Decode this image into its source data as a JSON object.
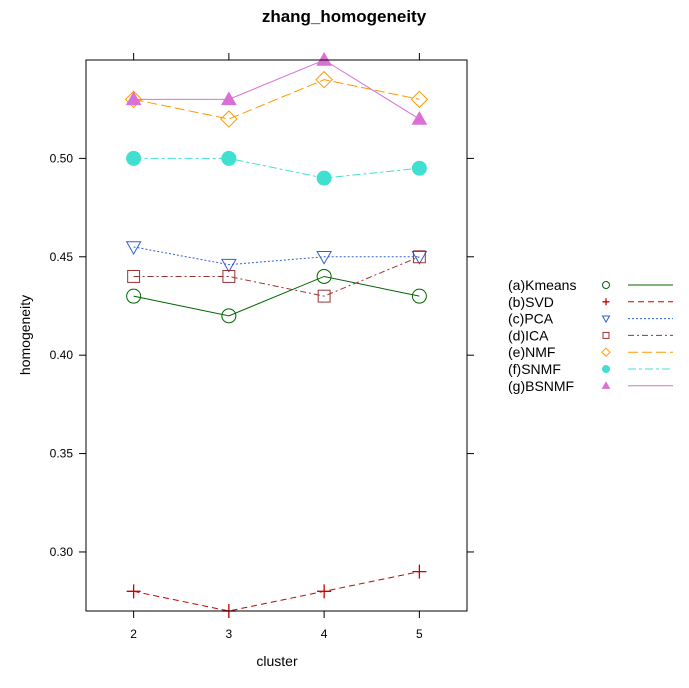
{
  "chart_data": {
    "type": "line",
    "title": "zhang_homogeneity",
    "xlabel": "cluster",
    "ylabel": "homogeneity",
    "x": [
      2,
      3,
      4,
      5
    ],
    "xlim": [
      1.5,
      5.5
    ],
    "ylim": [
      0.27,
      0.55
    ],
    "yticks": [
      0.3,
      0.35,
      0.4,
      0.45,
      0.5
    ],
    "ytick_labels": [
      "0.30",
      "0.35",
      "0.40",
      "0.45",
      "0.50"
    ],
    "xtick_labels": [
      "2",
      "3",
      "4",
      "5"
    ],
    "legend_position": "right",
    "grid": false,
    "series": [
      {
        "name": "(a)Kmeans",
        "values": [
          0.43,
          0.42,
          0.44,
          0.43
        ],
        "color": "#006400",
        "marker": "circle-open",
        "dash": "solid"
      },
      {
        "name": "(b)SVD",
        "values": [
          0.28,
          0.27,
          0.28,
          0.29
        ],
        "color": "#cc0000",
        "marker": "plus",
        "dash": "dashed"
      },
      {
        "name": "(c)PCA",
        "values": [
          0.455,
          0.446,
          0.45,
          0.45
        ],
        "color": "#3060d0",
        "marker": "triangle-down-open",
        "dash": "dotted"
      },
      {
        "name": "(d)ICA",
        "values": [
          0.44,
          0.44,
          0.43,
          0.45
        ],
        "color": "#993333",
        "marker": "square-open",
        "dash": "dashdot"
      },
      {
        "name": "(e)NMF",
        "values": [
          0.53,
          0.52,
          0.54,
          0.53
        ],
        "color": "#ff9900",
        "marker": "diamond-open",
        "dash": "longdash"
      },
      {
        "name": "(f)SNMF",
        "values": [
          0.5,
          0.5,
          0.49,
          0.495
        ],
        "color": "#40e0d0",
        "marker": "circle-filled",
        "dash": "twodash"
      },
      {
        "name": "(g)BSNMF",
        "values": [
          0.53,
          0.53,
          0.55,
          0.52
        ],
        "color": "#da70d6",
        "marker": "triangle-up-filled",
        "dash": "solid"
      }
    ]
  }
}
